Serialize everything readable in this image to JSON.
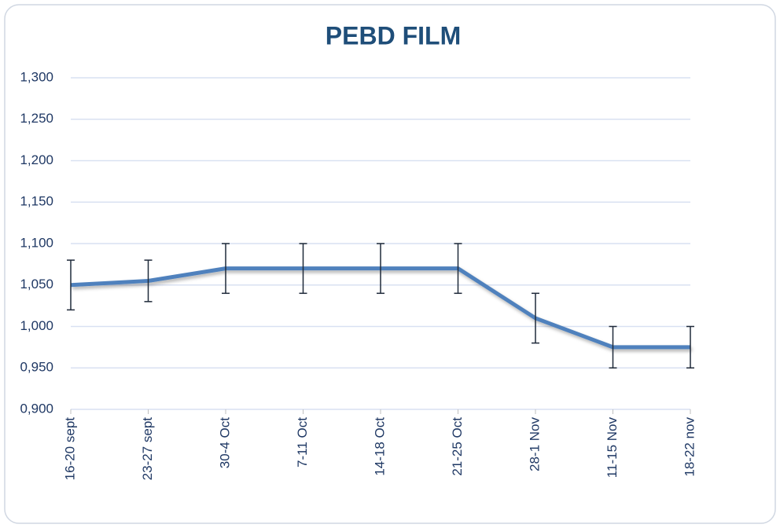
{
  "chart_data": {
    "type": "line",
    "title": "PEBD FILM",
    "categories": [
      "16-20 sept",
      "23-27 sept",
      "30-4 Oct",
      "7-11 Oct",
      "14-18 Oct",
      "21-25 Oct",
      "28-1 Nov",
      "11-15 Nov",
      "18-22 nov"
    ],
    "series": [
      {
        "name": "PEBD FILM",
        "color": "#4f81bd",
        "values": [
          1.05,
          1.055,
          1.07,
          1.07,
          1.07,
          1.07,
          1.01,
          0.975,
          0.975
        ],
        "errors": [
          0.03,
          0.025,
          0.03,
          0.03,
          0.03,
          0.03,
          0.03,
          0.025,
          0.025
        ]
      }
    ],
    "ylim": [
      0.9,
      1.3
    ],
    "yticks": [
      {
        "value": 0.9,
        "label": "0,900"
      },
      {
        "value": 0.95,
        "label": "0,950"
      },
      {
        "value": 1.0,
        "label": "1,000"
      },
      {
        "value": 1.05,
        "label": "1,050"
      },
      {
        "value": 1.1,
        "label": "1,100"
      },
      {
        "value": 1.15,
        "label": "1,150"
      },
      {
        "value": 1.2,
        "label": "1,200"
      },
      {
        "value": 1.25,
        "label": "1,250"
      },
      {
        "value": 1.3,
        "label": "1,300"
      }
    ],
    "grid": true
  }
}
